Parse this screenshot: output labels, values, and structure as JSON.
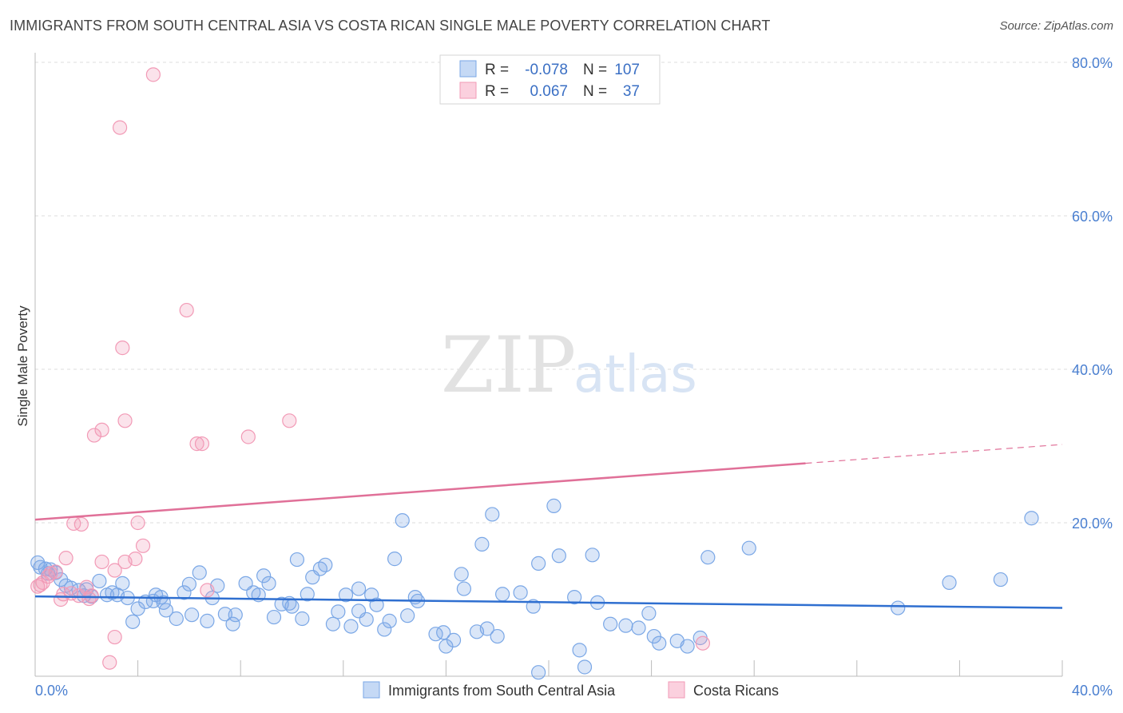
{
  "title": "IMMIGRANTS FROM SOUTH CENTRAL ASIA VS COSTA RICAN SINGLE MALE POVERTY CORRELATION CHART",
  "source": "Source: ZipAtlas.com",
  "watermark": {
    "zip": "ZIP",
    "atlas": "atlas"
  },
  "colors": {
    "blue": "#7aa7e6",
    "blue_line": "#2f6fd0",
    "pink": "#f29ab6",
    "pink_line": "#e07098",
    "tick": "#4a7fd0",
    "grid": "#dddddd"
  },
  "legend": {
    "r_label": "R =",
    "n_label": "N =",
    "rows": [
      {
        "r": "-0.078",
        "n": "107"
      },
      {
        "r": "0.067",
        "n": "37"
      }
    ]
  },
  "chart_data": {
    "type": "scatter",
    "title": "IMMIGRANTS FROM SOUTH CENTRAL ASIA VS COSTA RICAN SINGLE MALE POVERTY CORRELATION CHART",
    "xlabel": "",
    "ylabel": "Single Male Poverty",
    "xlim": [
      0,
      40
    ],
    "ylim": [
      0,
      80
    ],
    "x_tick_labels": [
      "0.0%",
      "40.0%"
    ],
    "y_ticks": [
      20,
      40,
      60,
      80
    ],
    "y_tick_labels": [
      "20.0%",
      "40.0%",
      "60.0%",
      "80.0%"
    ],
    "grid": true,
    "legend_position": "top-center and bottom",
    "series": [
      {
        "name": "Immigrants from South Central Asia",
        "trend": {
          "x0": 0,
          "y0": 10.4,
          "x1": 40,
          "y1": 8.9,
          "dashed_from": null
        },
        "points": [
          [
            0.1,
            14.8
          ],
          [
            0.4,
            14.0
          ],
          [
            0.5,
            13.4
          ],
          [
            0.8,
            13.5
          ],
          [
            1.0,
            12.6
          ],
          [
            1.2,
            11.8
          ],
          [
            1.4,
            11.5
          ],
          [
            1.7,
            11.2
          ],
          [
            1.9,
            10.5
          ],
          [
            2.2,
            10.4
          ],
          [
            2.5,
            12.4
          ],
          [
            2.8,
            10.6
          ],
          [
            3.2,
            10.6
          ],
          [
            3.4,
            12.1
          ],
          [
            3.6,
            10.2
          ],
          [
            3.8,
            7.1
          ],
          [
            4.0,
            8.8
          ],
          [
            4.3,
            9.7
          ],
          [
            4.6,
            9.8
          ],
          [
            4.7,
            10.6
          ],
          [
            5.0,
            9.6
          ],
          [
            5.1,
            8.6
          ],
          [
            5.5,
            7.5
          ],
          [
            5.8,
            10.9
          ],
          [
            6.0,
            12.0
          ],
          [
            6.1,
            8.0
          ],
          [
            6.4,
            13.5
          ],
          [
            6.7,
            7.2
          ],
          [
            6.9,
            10.2
          ],
          [
            7.1,
            11.8
          ],
          [
            7.4,
            8.1
          ],
          [
            7.7,
            6.8
          ],
          [
            7.8,
            8.0
          ],
          [
            8.2,
            12.1
          ],
          [
            8.5,
            10.9
          ],
          [
            8.7,
            10.6
          ],
          [
            8.9,
            13.1
          ],
          [
            9.1,
            12.1
          ],
          [
            9.3,
            7.7
          ],
          [
            9.6,
            9.4
          ],
          [
            9.9,
            9.5
          ],
          [
            10.0,
            9.1
          ],
          [
            10.2,
            15.2
          ],
          [
            10.4,
            7.5
          ],
          [
            10.6,
            10.7
          ],
          [
            10.8,
            12.9
          ],
          [
            11.1,
            14.0
          ],
          [
            11.3,
            14.5
          ],
          [
            11.6,
            6.8
          ],
          [
            11.8,
            8.4
          ],
          [
            12.1,
            10.6
          ],
          [
            12.3,
            6.5
          ],
          [
            12.6,
            8.5
          ],
          [
            12.6,
            11.4
          ],
          [
            12.9,
            7.4
          ],
          [
            13.1,
            10.6
          ],
          [
            13.3,
            9.3
          ],
          [
            13.6,
            6.1
          ],
          [
            13.8,
            7.2
          ],
          [
            14.0,
            15.3
          ],
          [
            14.3,
            20.3
          ],
          [
            14.5,
            7.9
          ],
          [
            14.8,
            10.3
          ],
          [
            14.9,
            9.8
          ],
          [
            15.6,
            5.5
          ],
          [
            15.9,
            5.7
          ],
          [
            16.0,
            3.9
          ],
          [
            16.3,
            4.7
          ],
          [
            16.6,
            13.3
          ],
          [
            16.7,
            11.4
          ],
          [
            17.2,
            5.8
          ],
          [
            17.4,
            17.2
          ],
          [
            17.6,
            6.2
          ],
          [
            17.8,
            21.1
          ],
          [
            18.0,
            5.2
          ],
          [
            18.2,
            10.7
          ],
          [
            18.9,
            10.9
          ],
          [
            19.4,
            9.1
          ],
          [
            19.6,
            14.7
          ],
          [
            19.6,
            0.5
          ],
          [
            20.2,
            22.2
          ],
          [
            20.4,
            15.7
          ],
          [
            21.0,
            10.3
          ],
          [
            21.2,
            3.4
          ],
          [
            21.4,
            1.2
          ],
          [
            21.7,
            15.8
          ],
          [
            21.9,
            9.6
          ],
          [
            22.4,
            6.8
          ],
          [
            23.0,
            6.6
          ],
          [
            23.5,
            6.3
          ],
          [
            23.9,
            8.2
          ],
          [
            24.1,
            5.2
          ],
          [
            24.3,
            4.3
          ],
          [
            25.0,
            4.6
          ],
          [
            25.4,
            3.9
          ],
          [
            25.9,
            5.0
          ],
          [
            26.2,
            15.5
          ],
          [
            27.8,
            16.7
          ],
          [
            33.6,
            8.9
          ],
          [
            35.6,
            12.2
          ],
          [
            37.6,
            12.6
          ],
          [
            38.8,
            20.6
          ],
          [
            0.2,
            14.2
          ],
          [
            0.6,
            13.9
          ],
          [
            2.0,
            11.3
          ],
          [
            3.0,
            10.9
          ],
          [
            4.9,
            10.3
          ]
        ]
      },
      {
        "name": "Costa Ricans",
        "trend": {
          "x0": 0,
          "y0": 20.4,
          "x1": 40,
          "y1": 30.2,
          "dashed_from": 30.0
        },
        "points": [
          [
            0.1,
            11.7
          ],
          [
            0.3,
            12.2
          ],
          [
            0.5,
            13.0
          ],
          [
            0.6,
            13.4
          ],
          [
            0.8,
            13.6
          ],
          [
            1.0,
            10.0
          ],
          [
            1.2,
            15.4
          ],
          [
            1.4,
            10.8
          ],
          [
            1.5,
            19.9
          ],
          [
            1.7,
            10.5
          ],
          [
            1.8,
            19.8
          ],
          [
            2.0,
            11.6
          ],
          [
            2.1,
            10.1
          ],
          [
            2.3,
            31.4
          ],
          [
            2.6,
            32.1
          ],
          [
            2.6,
            14.9
          ],
          [
            3.1,
            13.8
          ],
          [
            3.1,
            5.1
          ],
          [
            3.3,
            71.5
          ],
          [
            3.4,
            42.8
          ],
          [
            3.5,
            33.3
          ],
          [
            3.5,
            14.9
          ],
          [
            3.9,
            15.3
          ],
          [
            4.0,
            20.0
          ],
          [
            4.2,
            17.0
          ],
          [
            4.6,
            78.4
          ],
          [
            5.9,
            47.7
          ],
          [
            6.3,
            30.3
          ],
          [
            6.5,
            30.3
          ],
          [
            6.7,
            11.2
          ],
          [
            8.3,
            31.2
          ],
          [
            9.9,
            33.3
          ],
          [
            2.9,
            1.8
          ],
          [
            26.0,
            4.3
          ],
          [
            0.2,
            11.9
          ],
          [
            1.1,
            10.7
          ],
          [
            2.2,
            10.5
          ]
        ]
      }
    ]
  },
  "bottom_legend": [
    "Immigrants from South Central Asia",
    "Costa Ricans"
  ]
}
